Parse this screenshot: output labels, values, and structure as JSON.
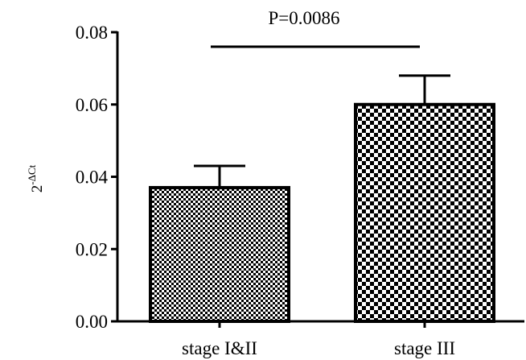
{
  "chart_data": {
    "type": "bar",
    "title": "",
    "xlabel": "",
    "ylabel": {
      "base": "2",
      "exponent": "-ΔCt"
    },
    "ylim": [
      0,
      0.08
    ],
    "yticks": [
      "0.00",
      "0.02",
      "0.04",
      "0.06",
      "0.08"
    ],
    "categories": [
      "stage I&II",
      "stage III"
    ],
    "values": [
      0.037,
      0.06
    ],
    "errors": [
      0.006,
      0.008
    ],
    "patterns": [
      "fine-checker",
      "coarse-checker"
    ],
    "bar_fill_colors": [
      "#000000",
      "#000000"
    ],
    "annotation": {
      "text": "P=0.0086",
      "between": [
        0,
        1
      ],
      "y": 0.076
    },
    "grid": false,
    "legend": "none"
  }
}
